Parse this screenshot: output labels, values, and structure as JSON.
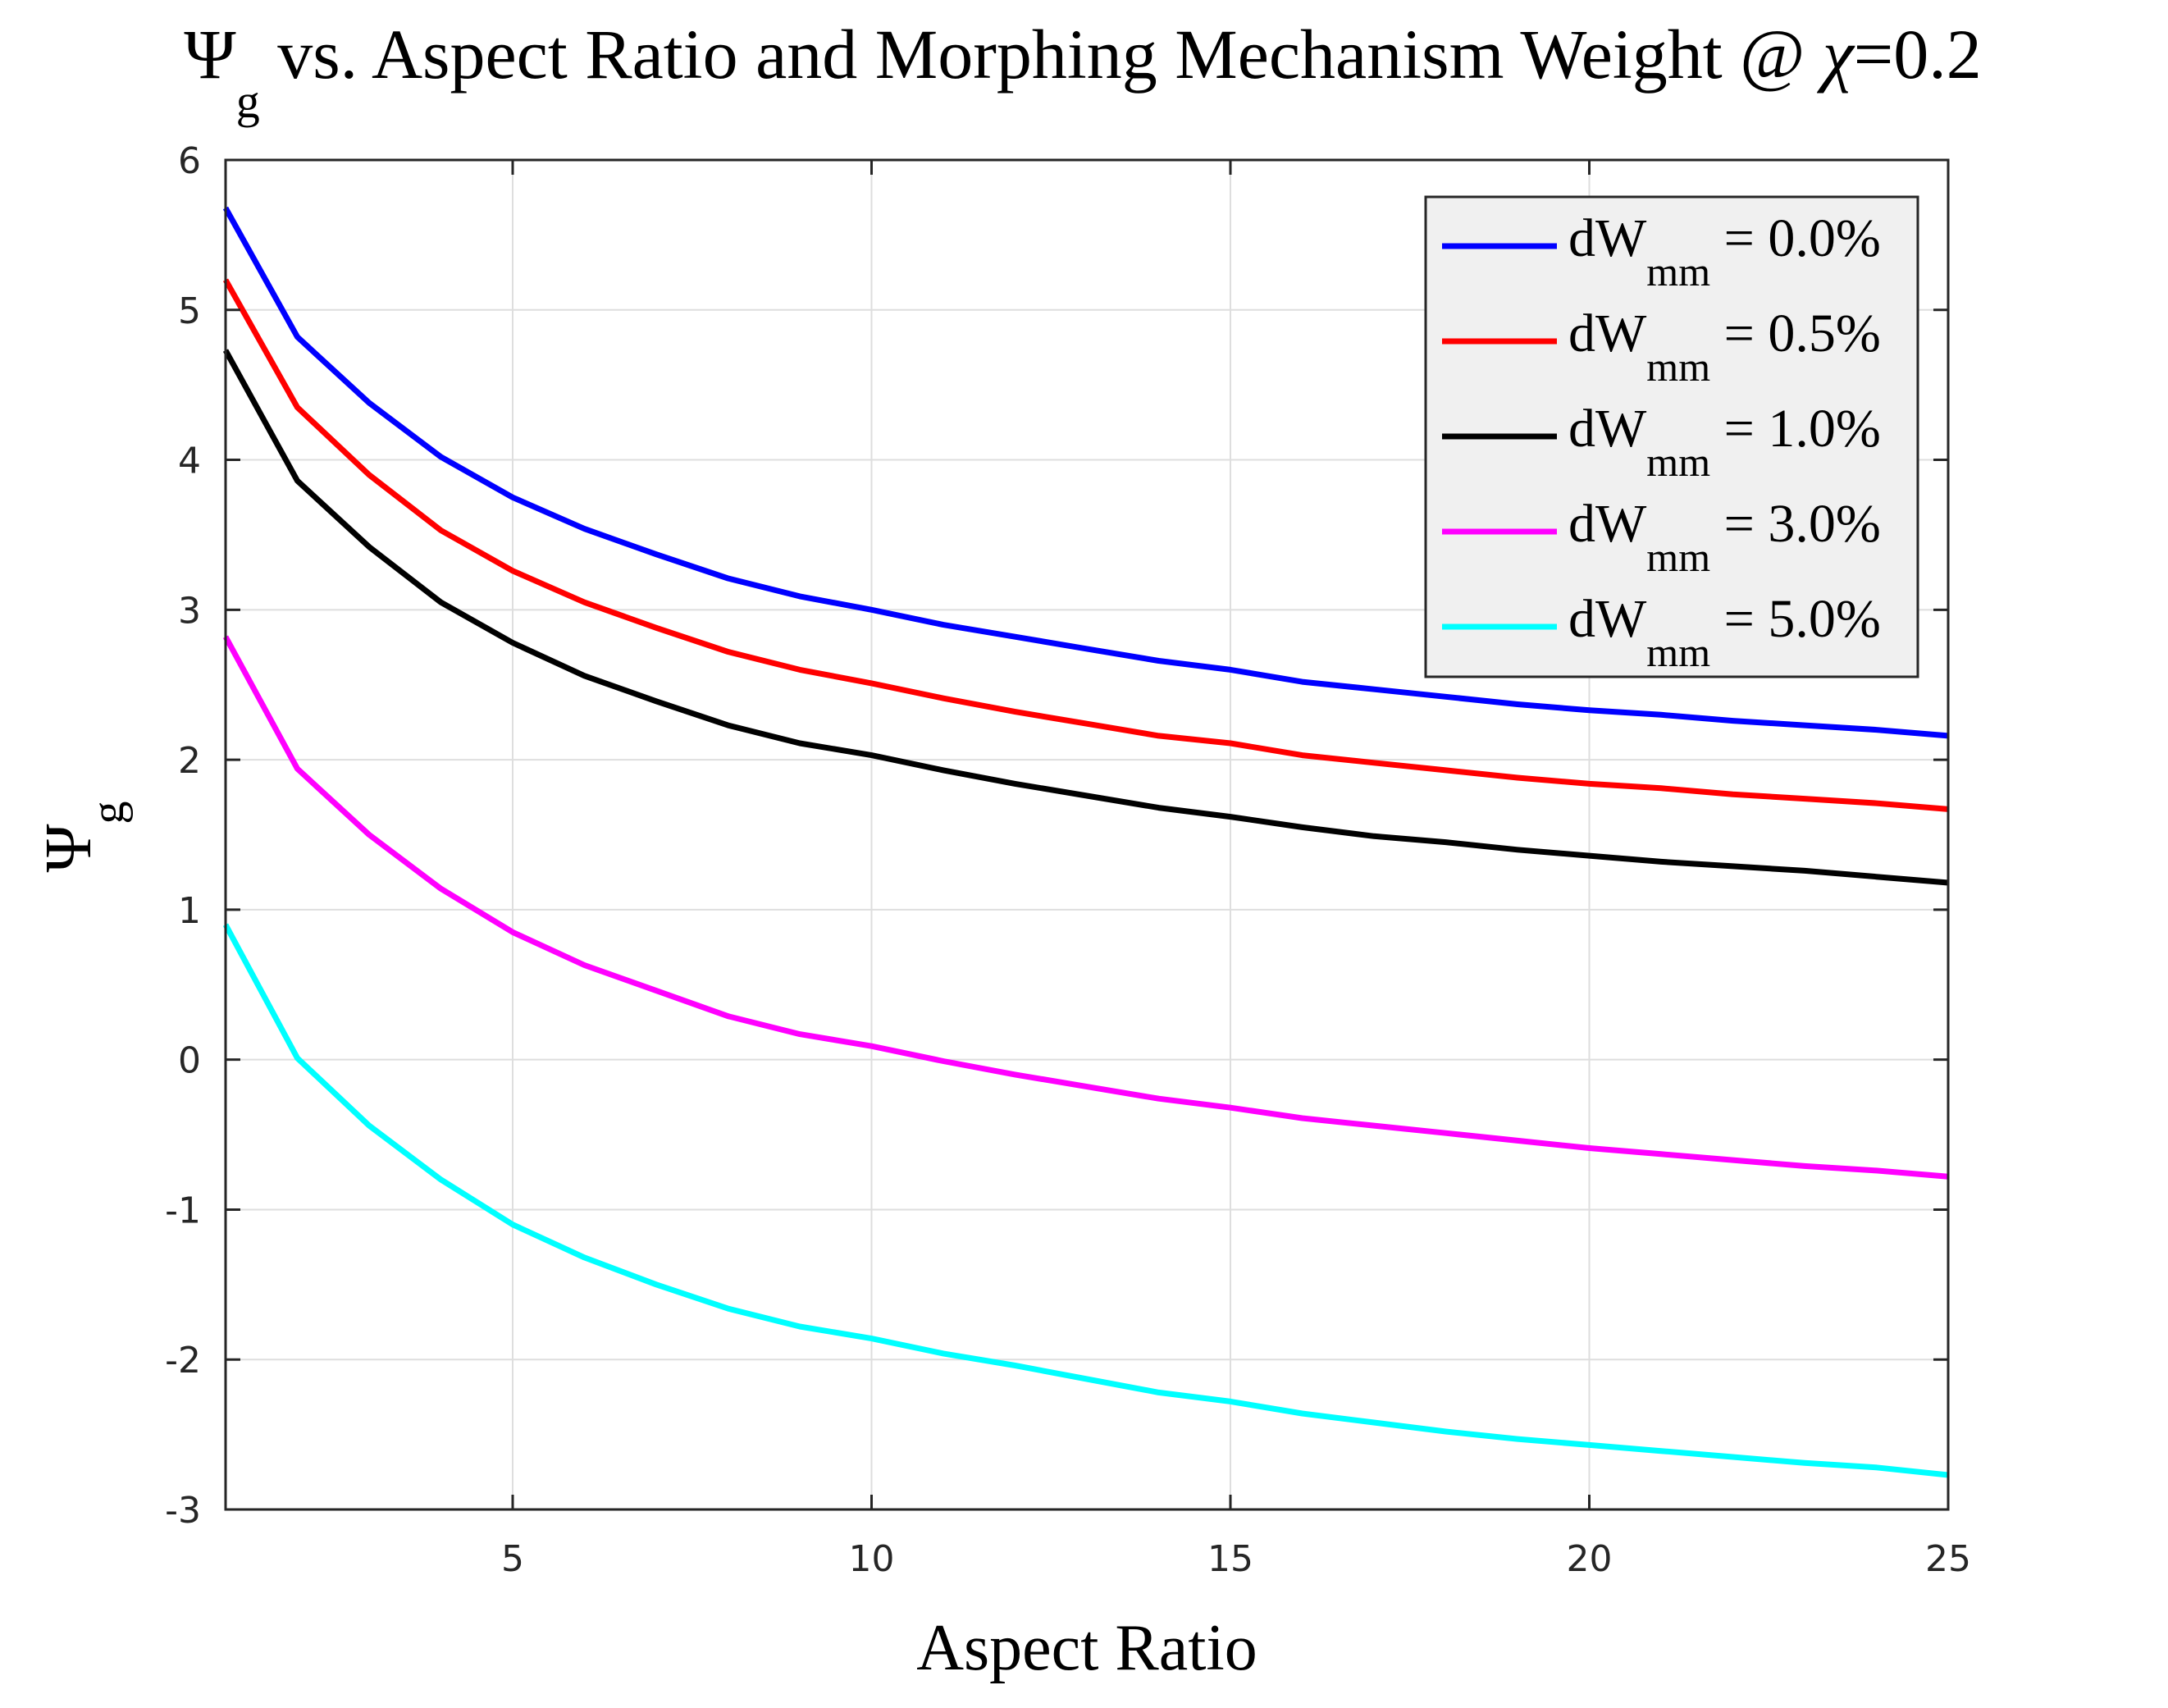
{
  "chart_data": {
    "type": "line",
    "title": {
      "symbol": "Ψ",
      "symbol_sub": "g",
      "text": " vs. Aspect Ratio and Morphing Mechanism Weight @ ",
      "chi": "χ",
      "suffix": "=0.2"
    },
    "xlabel": "Aspect Ratio",
    "ylabel": {
      "symbol": "Ψ",
      "sub": "g"
    },
    "xlim": [
      1,
      25
    ],
    "ylim": [
      -3,
      6
    ],
    "xticks": [
      5,
      10,
      15,
      20,
      25
    ],
    "yticks": [
      -3,
      -2,
      -1,
      0,
      1,
      2,
      3,
      4,
      5,
      6
    ],
    "grid": true,
    "legend_position": "top-right",
    "x": [
      1,
      2,
      3,
      4,
      5,
      6,
      7,
      8,
      9,
      10,
      11,
      12,
      13,
      14,
      15,
      16,
      17,
      18,
      19,
      20,
      21,
      22,
      23,
      24,
      25
    ],
    "series": [
      {
        "legend": {
          "prefix": "dW",
          "sub": "mm",
          "suffix": " = 0.0%"
        },
        "color": "#0000ff",
        "values": [
          5.68,
          4.82,
          4.38,
          4.02,
          3.75,
          3.54,
          3.37,
          3.21,
          3.09,
          3.0,
          2.9,
          2.82,
          2.74,
          2.66,
          2.6,
          2.52,
          2.47,
          2.42,
          2.37,
          2.33,
          2.3,
          2.26,
          2.23,
          2.2,
          2.16
        ]
      },
      {
        "legend": {
          "prefix": "dW",
          "sub": "mm",
          "suffix": " = 0.5%"
        },
        "color": "#ff0000",
        "values": [
          5.2,
          4.35,
          3.9,
          3.53,
          3.26,
          3.05,
          2.88,
          2.72,
          2.6,
          2.51,
          2.41,
          2.32,
          2.24,
          2.16,
          2.11,
          2.03,
          1.98,
          1.93,
          1.88,
          1.84,
          1.81,
          1.77,
          1.74,
          1.71,
          1.67
        ]
      },
      {
        "legend": {
          "prefix": "dW",
          "sub": "mm",
          "suffix": " = 1.0%"
        },
        "color": "#000000",
        "values": [
          4.73,
          3.86,
          3.42,
          3.05,
          2.78,
          2.56,
          2.39,
          2.23,
          2.11,
          2.03,
          1.93,
          1.84,
          1.76,
          1.68,
          1.62,
          1.55,
          1.49,
          1.45,
          1.4,
          1.36,
          1.32,
          1.29,
          1.26,
          1.22,
          1.18
        ]
      },
      {
        "legend": {
          "prefix": "dW",
          "sub": "mm",
          "suffix": " = 3.0%"
        },
        "color": "#ff00ff",
        "values": [
          2.82,
          1.94,
          1.5,
          1.14,
          0.85,
          0.63,
          0.46,
          0.29,
          0.17,
          0.09,
          -0.01,
          -0.1,
          -0.18,
          -0.26,
          -0.32,
          -0.39,
          -0.44,
          -0.49,
          -0.54,
          -0.59,
          -0.63,
          -0.67,
          -0.71,
          -0.74,
          -0.78
        ]
      },
      {
        "legend": {
          "prefix": "dW",
          "sub": "mm",
          "suffix": " = 5.0%"
        },
        "color": "#00ffff",
        "values": [
          0.9,
          0.01,
          -0.44,
          -0.8,
          -1.1,
          -1.32,
          -1.5,
          -1.66,
          -1.78,
          -1.86,
          -1.96,
          -2.04,
          -2.13,
          -2.22,
          -2.28,
          -2.36,
          -2.42,
          -2.48,
          -2.53,
          -2.57,
          -2.61,
          -2.65,
          -2.69,
          -2.72,
          -2.77
        ]
      }
    ]
  }
}
